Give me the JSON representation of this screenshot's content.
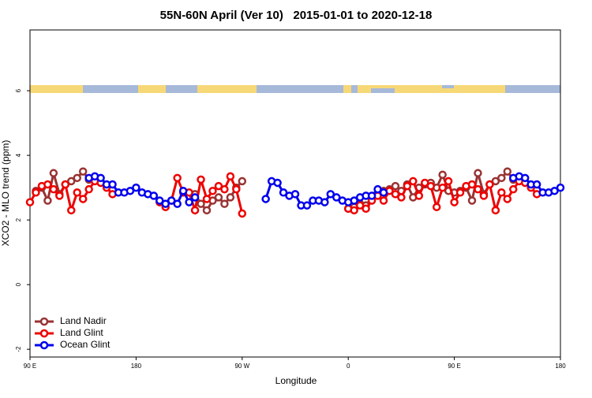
{
  "chart_data": {
    "type": "line",
    "title": "55N-60N April (Ver 10)   2015-01-01 to 2020-12-18",
    "x_label": "Longitude",
    "y_label": "XCO2 - MLO trend (ppm)",
    "xlim": [
      90,
      540
    ],
    "xticks": [
      {
        "value": 90,
        "label": "90 E"
      },
      180,
      {
        "value": 270,
        "label": "90 W"
      },
      {
        "value": 360,
        "label": "0"
      },
      {
        "value": 450,
        "label": "90 E"
      },
      {
        "value": 540,
        "label": "180"
      }
    ],
    "ylim": [
      -2.24,
      7.88
    ],
    "yticks": [
      -2,
      0,
      2,
      4,
      6
    ],
    "legend": "bottom-left",
    "series": [
      {
        "name": "Land Nadir",
        "color": "#993333",
        "x": [
          95,
          100,
          105,
          110,
          115,
          120,
          125,
          130,
          135,
          140,
          185,
          230,
          235,
          240,
          245,
          250,
          255,
          260,
          265,
          270,
          315,
          360,
          365,
          370,
          375,
          380,
          385,
          390,
          395,
          400,
          405,
          410,
          415,
          420,
          425,
          430,
          435,
          440,
          445,
          450,
          455,
          460,
          465,
          470,
          475,
          480,
          485,
          490,
          495,
          500
        ],
        "values": [
          2.9,
          3.0,
          2.6,
          3.45,
          2.8,
          3.1,
          3.2,
          3.3,
          3.5,
          3.25,
          null,
          2.8,
          2.5,
          2.3,
          2.6,
          2.7,
          2.5,
          2.7,
          3.0,
          3.2,
          null,
          2.35,
          2.4,
          2.5,
          2.45,
          2.7,
          2.8,
          2.9,
          2.95,
          3.05,
          2.9,
          3.1,
          2.7,
          3.0,
          3.1,
          3.15,
          3.0,
          3.4,
          2.9,
          2.85,
          2.9,
          3.0,
          2.6,
          3.45,
          2.8,
          3.1,
          3.2,
          3.3,
          3.5,
          3.25
        ]
      },
      {
        "name": "Land Glint",
        "color": "#ee0000",
        "x": [
          90,
          95,
          100,
          105,
          110,
          115,
          120,
          125,
          130,
          135,
          140,
          145,
          150,
          155,
          160,
          180,
          200,
          205,
          210,
          215,
          220,
          225,
          230,
          235,
          240,
          245,
          250,
          255,
          260,
          265,
          270,
          315,
          360,
          365,
          370,
          375,
          380,
          385,
          390,
          395,
          400,
          405,
          410,
          415,
          420,
          425,
          430,
          435,
          440,
          445,
          450,
          455,
          460,
          465,
          470,
          475,
          480,
          485,
          490,
          495,
          500,
          505,
          510,
          515,
          520
        ],
        "values": [
          2.55,
          2.85,
          3.05,
          3.1,
          2.95,
          2.75,
          3.1,
          2.3,
          2.85,
          2.65,
          2.95,
          3.2,
          3.15,
          3.0,
          2.8,
          null,
          2.55,
          2.4,
          2.6,
          3.3,
          2.85,
          2.85,
          2.3,
          3.25,
          2.65,
          2.9,
          3.05,
          2.95,
          3.35,
          2.95,
          2.2,
          null,
          2.35,
          2.3,
          2.45,
          2.35,
          2.6,
          2.75,
          2.6,
          2.9,
          2.8,
          2.7,
          3.05,
          3.2,
          2.75,
          3.15,
          3.05,
          2.4,
          3.0,
          3.2,
          2.55,
          2.85,
          3.05,
          3.1,
          2.95,
          2.75,
          3.1,
          2.3,
          2.85,
          2.65,
          2.95,
          3.2,
          3.15,
          3.0,
          2.8
        ]
      },
      {
        "name": "Ocean Glint",
        "color": "#0000ee",
        "x": [
          140,
          145,
          150,
          155,
          160,
          165,
          170,
          175,
          180,
          185,
          190,
          195,
          200,
          205,
          210,
          215,
          220,
          225,
          230,
          260,
          290,
          295,
          300,
          305,
          310,
          315,
          320,
          325,
          330,
          335,
          340,
          345,
          350,
          355,
          360,
          365,
          370,
          375,
          380,
          385,
          390,
          395,
          500,
          505,
          510,
          515,
          520,
          525,
          530,
          535,
          540
        ],
        "values": [
          3.3,
          3.35,
          3.3,
          3.1,
          3.1,
          2.85,
          2.85,
          2.9,
          3.0,
          2.85,
          2.8,
          2.75,
          2.6,
          2.5,
          2.6,
          2.5,
          2.9,
          2.55,
          2.7,
          null,
          2.65,
          3.2,
          3.15,
          2.85,
          2.75,
          2.8,
          2.45,
          2.45,
          2.6,
          2.6,
          2.55,
          2.8,
          2.7,
          2.6,
          2.55,
          2.6,
          2.7,
          2.75,
          2.75,
          2.95,
          2.85,
          null,
          3.3,
          3.35,
          3.3,
          3.1,
          3.1,
          2.85,
          2.85,
          2.9,
          3.0
        ]
      }
    ]
  }
}
